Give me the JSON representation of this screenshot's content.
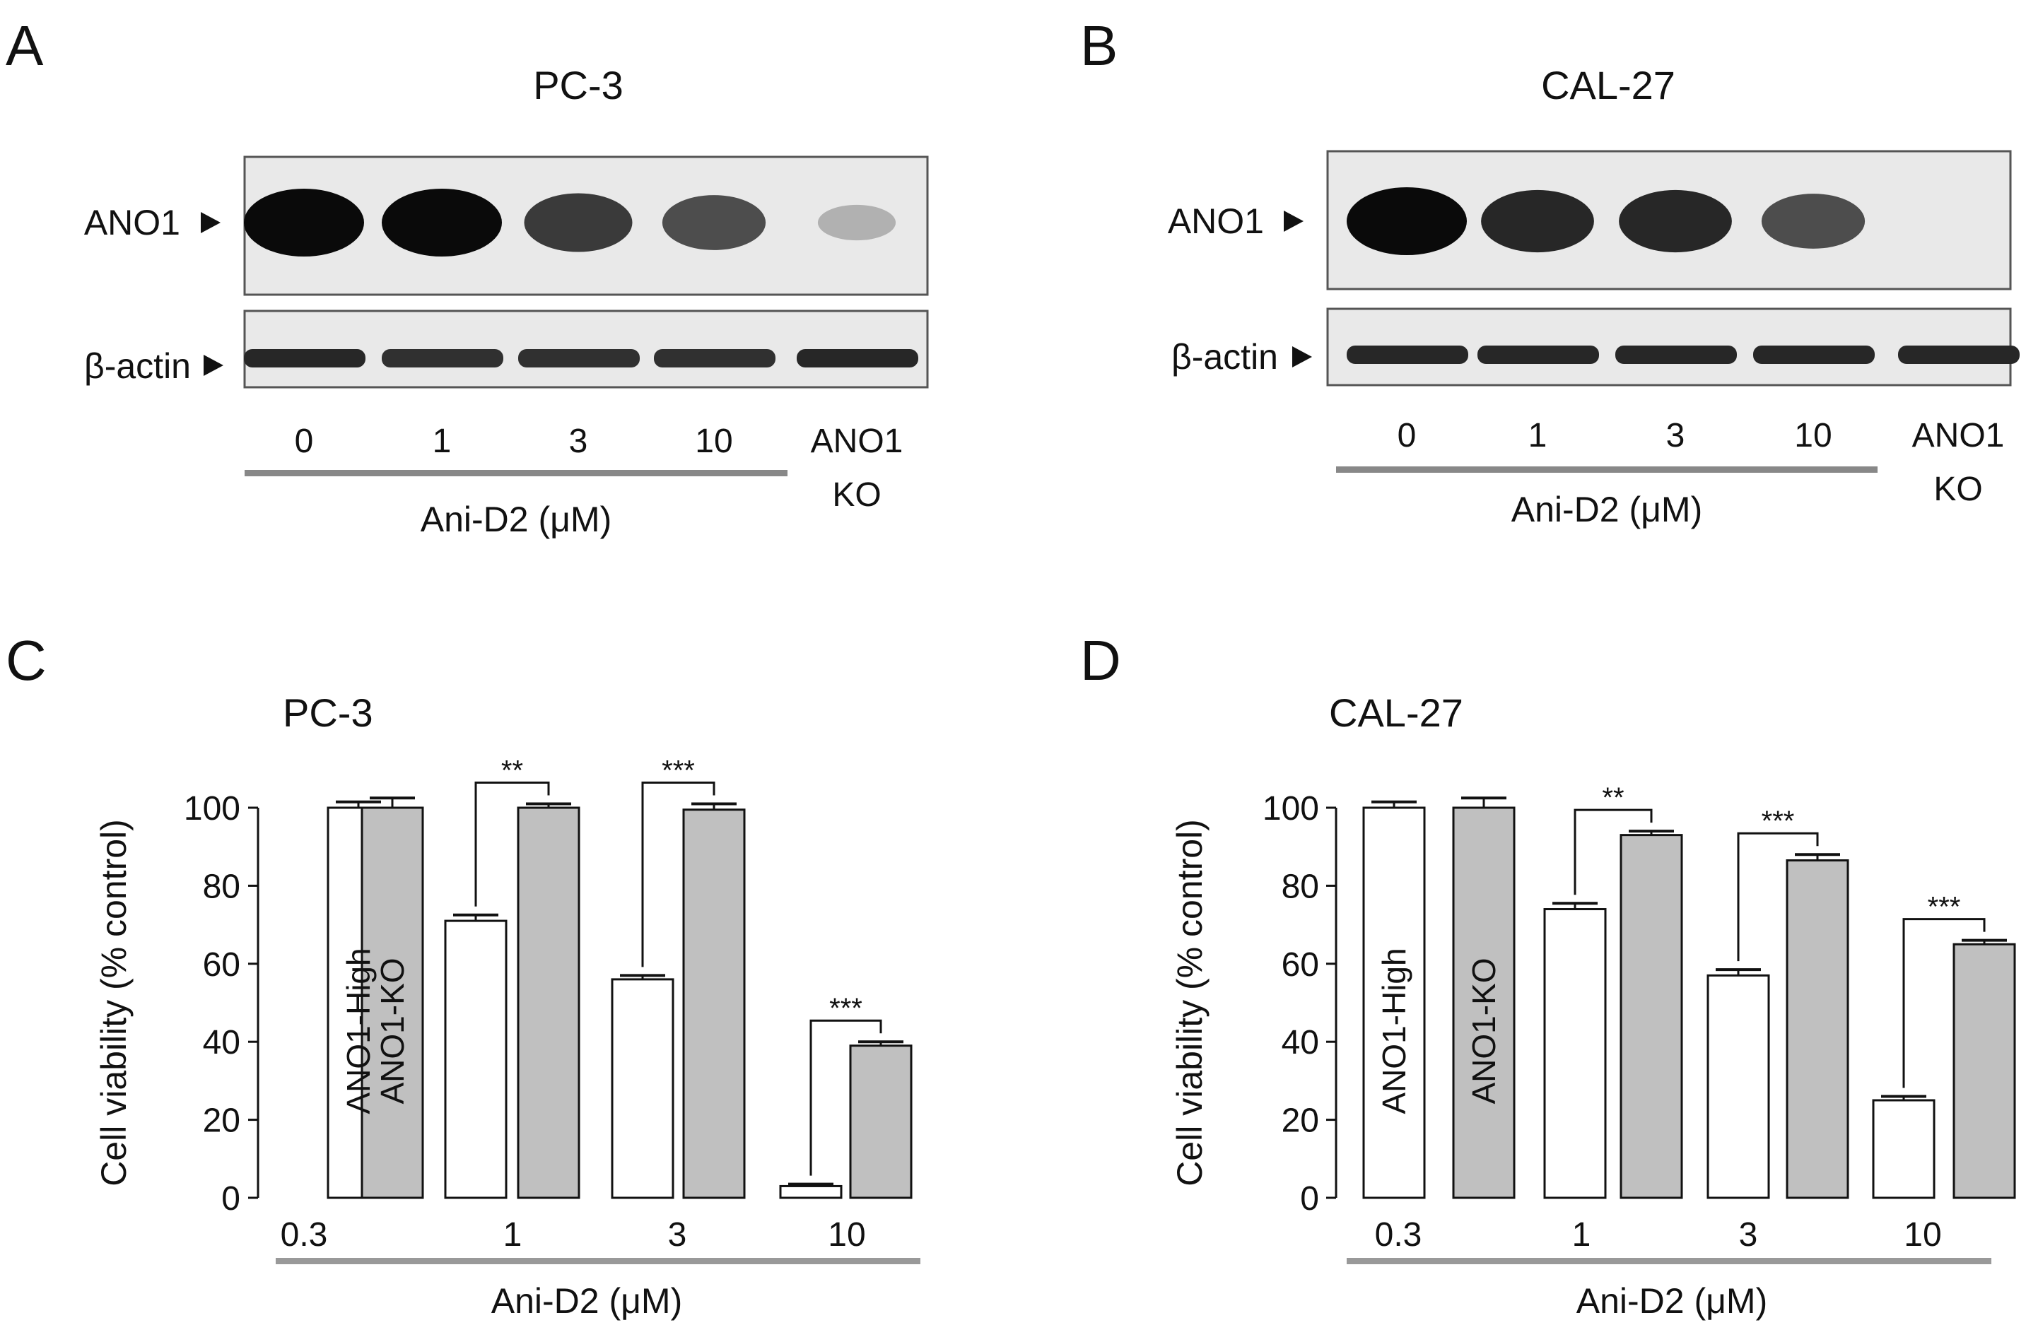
{
  "panels": {
    "A": {
      "letter": "A",
      "title": "PC-3"
    },
    "B": {
      "letter": "B",
      "title": "CAL-27"
    },
    "C": {
      "letter": "C"
    },
    "D": {
      "letter": "D"
    }
  },
  "blots": [
    {
      "id": "A",
      "title": "PC-3",
      "lanes": [
        "0",
        "1",
        "3",
        "10",
        "ANO1",
        "KO"
      ],
      "row_labels": {
        "ano1": "ANO1",
        "actin": "β-actin"
      },
      "xlabel": "Ani-D2 (μM)",
      "ano1_intensity": [
        1.0,
        1.0,
        0.75,
        0.65,
        0.12
      ],
      "actin_intensity": [
        0.85,
        0.8,
        0.8,
        0.8,
        0.85
      ]
    },
    {
      "id": "B",
      "title": "CAL-27",
      "lanes": [
        "0",
        "1",
        "3",
        "10",
        "ANO1",
        "KO"
      ],
      "row_labels": {
        "ano1": "ANO1",
        "actin": "β-actin"
      },
      "xlabel": "Ani-D2 (μM)",
      "ano1_intensity": [
        1.0,
        0.85,
        0.85,
        0.65,
        0.0
      ],
      "actin_intensity": [
        0.85,
        0.85,
        0.85,
        0.85,
        0.85
      ]
    }
  ],
  "chart_data": [
    {
      "type": "bar",
      "panel": "C",
      "title": "PC-3",
      "ylabel": "Cell viability (% control)",
      "xlabel": "Ani-D2 (μM)",
      "ylim": [
        0,
        100
      ],
      "yticks": [
        0,
        20,
        40,
        60,
        80,
        100
      ],
      "categories": [
        "0.3",
        "1",
        "3",
        "10"
      ],
      "bar_labels": [
        "ANO1-High",
        "ANO1-KO"
      ],
      "colors": {
        "ANO1-High": "#ffffff",
        "ANO1-KO": "#c0c0c0"
      },
      "series": [
        {
          "name": "ANO1-High",
          "values": [
            100,
            71,
            56,
            3
          ],
          "errors": [
            1.5,
            1.5,
            1,
            0.5
          ]
        },
        {
          "name": "ANO1-KO",
          "values": [
            100,
            100,
            99.5,
            39
          ],
          "errors": [
            2.5,
            1,
            1.5,
            1
          ]
        }
      ],
      "significance": [
        "",
        "**",
        "***",
        "***"
      ]
    },
    {
      "type": "bar",
      "panel": "D",
      "title": "CAL-27",
      "ylabel": "Cell viability (% control)",
      "xlabel": "Ani-D2 (μM)",
      "ylim": [
        0,
        100
      ],
      "yticks": [
        0,
        20,
        40,
        60,
        80,
        100
      ],
      "categories": [
        "0.3",
        "1",
        "3",
        "10"
      ],
      "bar_labels": [
        "ANO1-High",
        "ANO1-KO"
      ],
      "colors": {
        "ANO1-High": "#ffffff",
        "ANO1-KO": "#c0c0c0"
      },
      "series": [
        {
          "name": "ANO1-High",
          "values": [
            100,
            74,
            57,
            25
          ],
          "errors": [
            1.5,
            1.5,
            1.5,
            1
          ]
        },
        {
          "name": "ANO1-KO",
          "values": [
            100,
            93,
            86.5,
            65
          ],
          "errors": [
            2.5,
            1,
            1.5,
            1
          ]
        }
      ],
      "significance": [
        "",
        "**",
        "***",
        "***"
      ]
    }
  ]
}
